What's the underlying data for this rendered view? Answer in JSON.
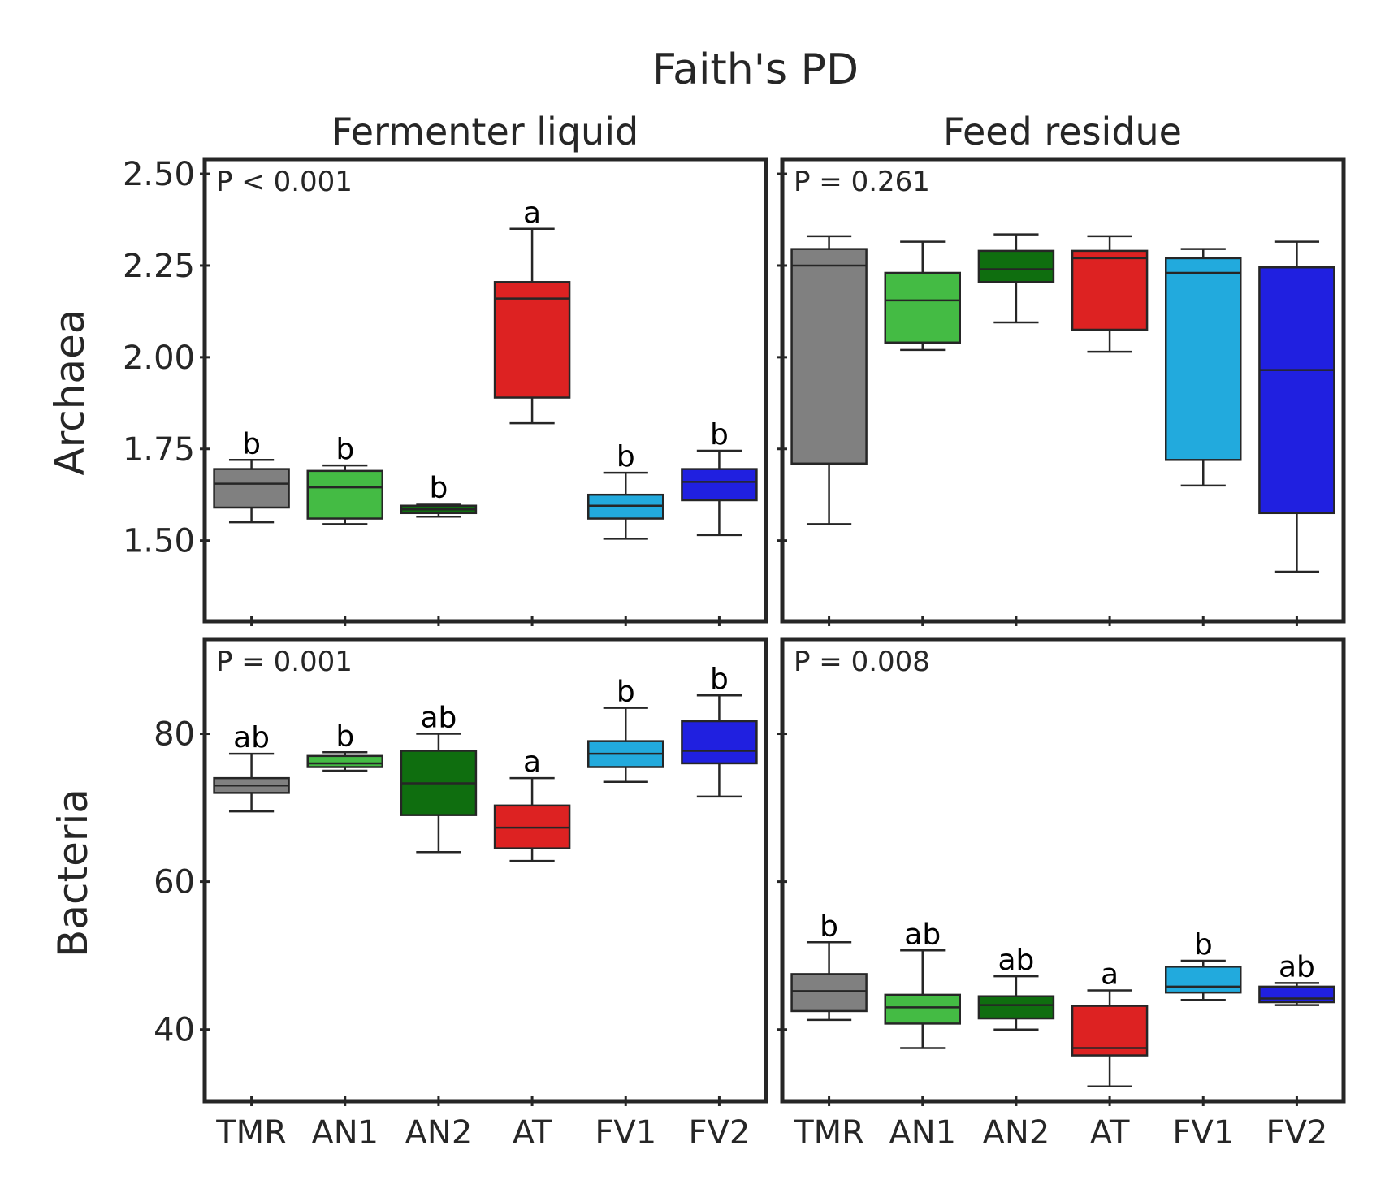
{
  "title": "Faith's PD",
  "columns": [
    "Fermenter liquid",
    "Feed residue"
  ],
  "rows": [
    "Archaea",
    "Bacteria"
  ],
  "categories": [
    "TMR",
    "AN1",
    "AN2",
    "AT",
    "FV1",
    "FV2"
  ],
  "colors": {
    "TMR": "#808080",
    "AN1": "#44bb44",
    "AN2": "#0f6e0f",
    "AT": "#dd2222",
    "FV1": "#22aadd",
    "FV2": "#2020e0",
    "line": "#262626",
    "frame": "#262626"
  },
  "chart_data": [
    {
      "type": "box",
      "row": "Archaea",
      "column": "Fermenter liquid",
      "p_text": "P < 0.001",
      "ylim": [
        1.28,
        2.54
      ],
      "yticks": [
        1.5,
        1.75,
        2.0,
        2.25,
        2.5
      ],
      "ytick_labels": [
        "1.50",
        "1.75",
        "2.00",
        "2.25",
        "2.50"
      ],
      "boxes": [
        {
          "category": "TMR",
          "whislo": 1.55,
          "q1": 1.59,
          "median": 1.655,
          "q3": 1.695,
          "whishi": 1.72,
          "letter": "b"
        },
        {
          "category": "AN1",
          "whislo": 1.545,
          "q1": 1.56,
          "median": 1.645,
          "q3": 1.69,
          "whishi": 1.705,
          "letter": "b"
        },
        {
          "category": "AN2",
          "whislo": 1.565,
          "q1": 1.575,
          "median": 1.585,
          "q3": 1.595,
          "whishi": 1.6,
          "letter": "b"
        },
        {
          "category": "AT",
          "whislo": 1.82,
          "q1": 1.89,
          "median": 2.16,
          "q3": 2.205,
          "whishi": 2.35,
          "letter": "a"
        },
        {
          "category": "FV1",
          "whislo": 1.505,
          "q1": 1.56,
          "median": 1.595,
          "q3": 1.625,
          "whishi": 1.685,
          "letter": "b"
        },
        {
          "category": "FV2",
          "whislo": 1.515,
          "q1": 1.61,
          "median": 1.66,
          "q3": 1.695,
          "whishi": 1.745,
          "letter": "b"
        }
      ]
    },
    {
      "type": "box",
      "row": "Archaea",
      "column": "Feed residue",
      "p_text": "P = 0.261",
      "ylim": [
        1.28,
        2.54
      ],
      "yticks": [
        1.5,
        1.75,
        2.0,
        2.25,
        2.5
      ],
      "boxes": [
        {
          "category": "TMR",
          "whislo": 1.545,
          "q1": 1.71,
          "median": 2.25,
          "q3": 2.295,
          "whishi": 2.33
        },
        {
          "category": "AN1",
          "whislo": 2.02,
          "q1": 2.04,
          "median": 2.155,
          "q3": 2.23,
          "whishi": 2.315
        },
        {
          "category": "AN2",
          "whislo": 2.095,
          "q1": 2.205,
          "median": 2.24,
          "q3": 2.29,
          "whishi": 2.335
        },
        {
          "category": "AT",
          "whislo": 2.015,
          "q1": 2.075,
          "median": 2.27,
          "q3": 2.29,
          "whishi": 2.33
        },
        {
          "category": "FV1",
          "whislo": 1.65,
          "q1": 1.72,
          "median": 2.23,
          "q3": 2.27,
          "whishi": 2.295
        },
        {
          "category": "FV2",
          "whislo": 1.415,
          "q1": 1.575,
          "median": 1.965,
          "q3": 2.245,
          "whishi": 2.315
        }
      ]
    },
    {
      "type": "box",
      "row": "Bacteria",
      "column": "Fermenter liquid",
      "p_text": "P = 0.001",
      "ylim": [
        30.3,
        92.8
      ],
      "yticks": [
        40,
        60,
        80
      ],
      "ytick_labels": [
        "40",
        "60",
        "80"
      ],
      "boxes": [
        {
          "category": "TMR",
          "whislo": 69.5,
          "q1": 72.0,
          "median": 73.0,
          "q3": 74.0,
          "whishi": 77.3,
          "letter": "ab"
        },
        {
          "category": "AN1",
          "whislo": 75.0,
          "q1": 75.5,
          "median": 76.0,
          "q3": 77.0,
          "whishi": 77.5,
          "letter": "b"
        },
        {
          "category": "AN2",
          "whislo": 64.0,
          "q1": 69.0,
          "median": 73.3,
          "q3": 77.7,
          "whishi": 80.0,
          "letter": "ab"
        },
        {
          "category": "AT",
          "whislo": 62.8,
          "q1": 64.5,
          "median": 67.3,
          "q3": 70.3,
          "whishi": 74.0,
          "letter": "a"
        },
        {
          "category": "FV1",
          "whislo": 73.5,
          "q1": 75.5,
          "median": 77.3,
          "q3": 79.0,
          "whishi": 83.5,
          "letter": "b"
        },
        {
          "category": "FV2",
          "whislo": 71.5,
          "q1": 76.0,
          "median": 77.7,
          "q3": 81.7,
          "whishi": 85.2,
          "letter": "b"
        }
      ]
    },
    {
      "type": "box",
      "row": "Bacteria",
      "column": "Feed residue",
      "p_text": "P = 0.008",
      "ylim": [
        30.3,
        92.8
      ],
      "yticks": [
        40,
        60,
        80
      ],
      "boxes": [
        {
          "category": "TMR",
          "whislo": 41.3,
          "q1": 42.5,
          "median": 45.2,
          "q3": 47.5,
          "whishi": 51.8,
          "letter": "b"
        },
        {
          "category": "AN1",
          "whislo": 37.5,
          "q1": 40.8,
          "median": 43.0,
          "q3": 44.7,
          "whishi": 50.7,
          "letter": "ab"
        },
        {
          "category": "AN2",
          "whislo": 40.0,
          "q1": 41.5,
          "median": 43.3,
          "q3": 44.5,
          "whishi": 47.2,
          "letter": "ab"
        },
        {
          "category": "AT",
          "whislo": 32.3,
          "q1": 36.5,
          "median": 37.5,
          "q3": 43.2,
          "whishi": 45.3,
          "letter": "a"
        },
        {
          "category": "FV1",
          "whislo": 44.0,
          "q1": 45.0,
          "median": 45.8,
          "q3": 48.5,
          "whishi": 49.3,
          "letter": "b"
        },
        {
          "category": "FV2",
          "whislo": 43.3,
          "q1": 43.7,
          "median": 44.2,
          "q3": 45.8,
          "whishi": 46.3,
          "letter": "ab"
        }
      ]
    }
  ]
}
